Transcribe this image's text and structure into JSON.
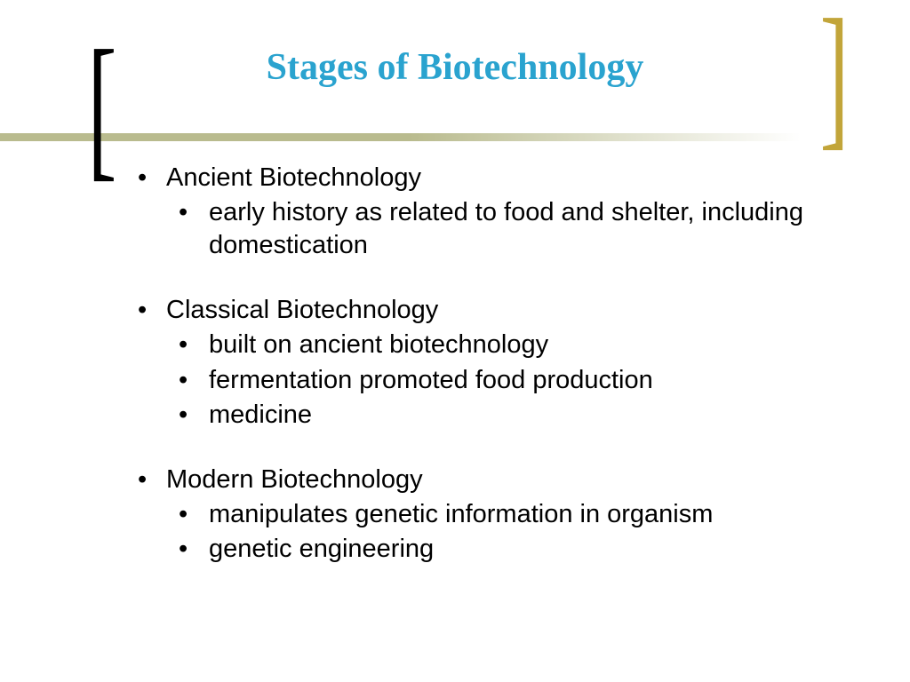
{
  "title": "Stages of Biotechnology",
  "title_color": "#2aa3cf",
  "title_fontsize": 42,
  "body_fontsize": 29,
  "bracket_left_color": "#000000",
  "bracket_right_color": "#c2a53a",
  "hline_color": "#b9bb8e",
  "bullets": [
    {
      "label": "Ancient Biotechnology",
      "sub": [
        "early history as related to food and shelter, including domestication"
      ]
    },
    {
      "label": "Classical Biotechnology",
      "sub": [
        "built on ancient biotechnology",
        "fermentation promoted food production",
        "medicine"
      ]
    },
    {
      "label": "Modern Biotechnology",
      "sub": [
        "manipulates genetic information in organism",
        "genetic engineering"
      ]
    }
  ]
}
